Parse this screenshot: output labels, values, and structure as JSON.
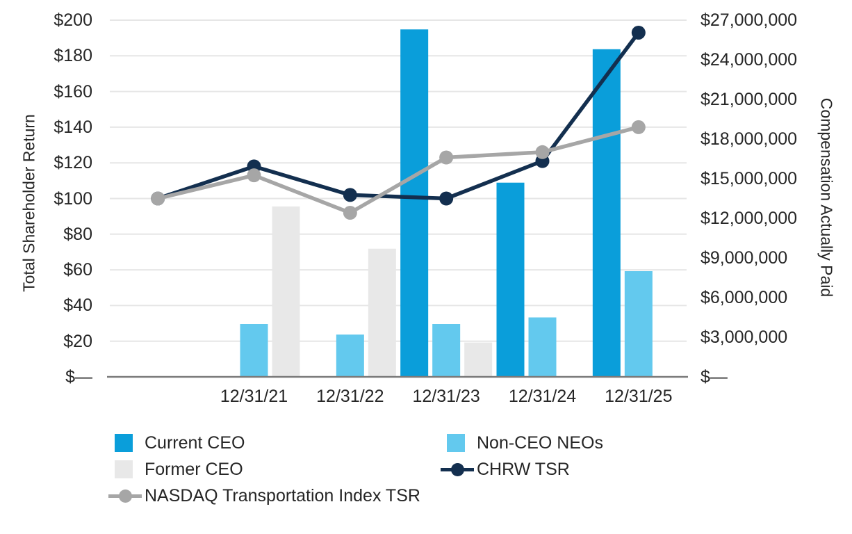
{
  "chart_data": {
    "type": "bar",
    "subtype": "combo-bar-line-dual-axis",
    "title": "",
    "categories": [
      "",
      "12/31/21",
      "12/31/22",
      "12/31/23",
      "12/31/24",
      "12/31/25"
    ],
    "bar_series": [
      {
        "name": "Current CEO",
        "color": "#0a9eda",
        "axis": "right",
        "values": [
          null,
          null,
          null,
          26300000,
          14700000,
          24800000
        ]
      },
      {
        "name": "Non-CEO NEOs",
        "color": "#63c9ee",
        "axis": "right",
        "values": [
          null,
          4000000,
          3200000,
          4000000,
          4500000,
          8000000
        ]
      },
      {
        "name": "Former CEO",
        "color": "#e8e8e8",
        "axis": "right",
        "values": [
          null,
          12900000,
          9700000,
          2600000,
          null,
          null
        ]
      }
    ],
    "line_series": [
      {
        "name": "CHRW TSR",
        "color": "#132f4f",
        "axis": "left",
        "values": [
          100,
          118,
          102,
          100,
          121,
          193
        ]
      },
      {
        "name": "NASDAQ Transportation Index TSR",
        "color": "#a6a6a6",
        "axis": "left",
        "values": [
          100,
          113,
          92,
          123,
          126,
          140
        ]
      }
    ],
    "axes": {
      "left": {
        "title": "Total Shareholder Return",
        "min": 0,
        "max": 200,
        "step": 20,
        "tick_labels": [
          "$—",
          "$20",
          "$40",
          "$60",
          "$80",
          "$100",
          "$120",
          "$140",
          "$160",
          "$180",
          "$200"
        ]
      },
      "right": {
        "title": "Compensation Actually Paid",
        "min": 0,
        "max": 27000000,
        "step": 3000000,
        "tick_labels": [
          "$—",
          "$3,000,000",
          "$6,000,000",
          "$9,000,000",
          "$12,000,000",
          "$15,000,000",
          "$18,000,000",
          "$21,000,000",
          "$24,000,000",
          "$27,000,000"
        ]
      }
    },
    "grid": {
      "horizontal": true,
      "vertical": false,
      "gridline_color": "#e6e6e6",
      "axis_line_color": "#7a7a7a"
    },
    "legend": {
      "position": "bottom-left-two-columns",
      "columns": [
        [
          {
            "swatch": "bar",
            "series": 0,
            "label": "Current CEO"
          },
          {
            "swatch": "bar",
            "series": 2,
            "label": "Former CEO"
          },
          {
            "swatch": "line",
            "series": 1,
            "label": "NASDAQ Transportation Index TSR"
          }
        ],
        [
          {
            "swatch": "bar",
            "series": 1,
            "label": "Non-CEO NEOs"
          },
          {
            "swatch": "line",
            "series": 0,
            "label": "CHRW TSR"
          }
        ]
      ]
    }
  }
}
